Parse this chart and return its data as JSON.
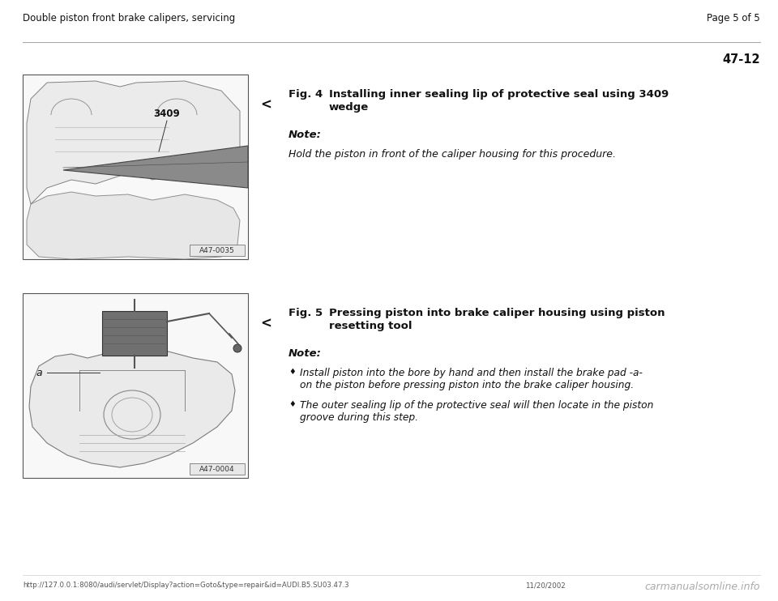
{
  "bg_color": "#ffffff",
  "page_bg": "#f5f3ef",
  "header_left": "Double piston front brake calipers, servicing",
  "header_right": "Page 5 of 5",
  "page_number": "47-12",
  "section1": {
    "fig_label": "Fig. 4",
    "fig_title_line1": "Installing inner sealing lip of protective seal using 3409",
    "fig_title_line2": "wedge",
    "note_label": "Note:",
    "note_text": "Hold the piston in front of the caliper housing for this procedure.",
    "img_tag": "A47-0035",
    "img_label": "3409"
  },
  "section2": {
    "fig_label": "Fig. 5",
    "fig_title_line1": "Pressing piston into brake caliper housing using piston",
    "fig_title_line2": "resetting tool",
    "note_label": "Note:",
    "bullet1_line1": "Install piston into the bore by hand and then install the brake pad -a-",
    "bullet1_line2": "on the piston before pressing piston into the brake caliper housing.",
    "bullet2_line1": "The outer sealing lip of the protective seal will then locate in the piston",
    "bullet2_line2": "groove during this step.",
    "img_tag": "A47-0004",
    "img_label": "a"
  },
  "footer_left": "http://127.0.0.1:8080/audi/servlet/Display?action=Goto&type=repair&id=AUDI.B5.SU03.47.3",
  "footer_right": "11/20/2002",
  "footer_logo": "carmanualsomline.info",
  "text_color": "#111111",
  "img_face_color": "#f8f8f8",
  "img_edge_color": "#555555",
  "tag_face_color": "#e8e8e8",
  "arrow_color": "#111111"
}
